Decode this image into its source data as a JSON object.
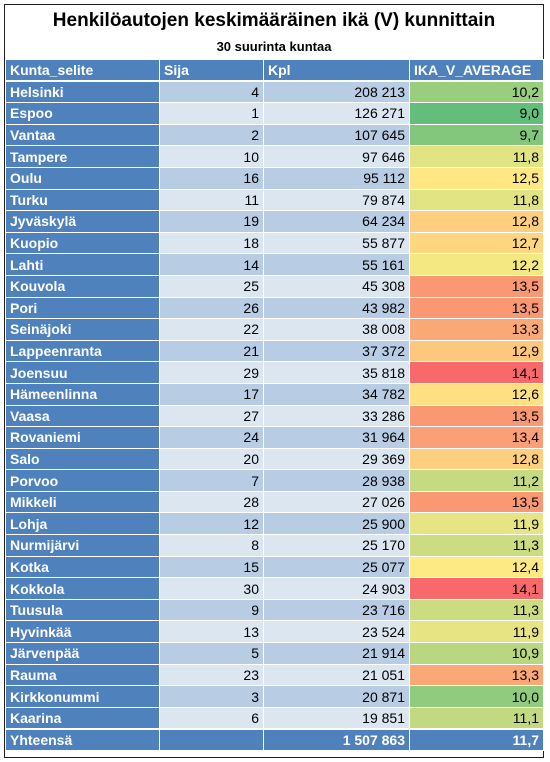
{
  "title": "Henkilöautojen keskimääräinen ikä (V) kunnittain",
  "subtitle": "30 suurinta kuntaa",
  "headers": [
    "Kunta_selite",
    "Sija",
    "Kpl",
    "IKA_V_AVERAGE"
  ],
  "total": {
    "label": "Yhteensä",
    "sija": "",
    "kpl": "1 507 863",
    "avg": "11,7"
  },
  "scale_colors": {
    "low": "#63be7b",
    "mid": "#ffeb84",
    "high": "#f8696b"
  },
  "chart_data": {
    "type": "table",
    "title": "Henkilöautojen keskimääräinen ikä (V) kunnittain",
    "subtitle": "30 suurinta kuntaa",
    "columns": [
      "Kunta_selite",
      "Sija",
      "Kpl",
      "IKA_V_AVERAGE"
    ],
    "rows": [
      {
        "kunta": "Helsinki",
        "sija": 4,
        "kpl": "208 213",
        "avg": "10,2"
      },
      {
        "kunta": "Espoo",
        "sija": 1,
        "kpl": "126 271",
        "avg": "9,0"
      },
      {
        "kunta": "Vantaa",
        "sija": 2,
        "kpl": "107 645",
        "avg": "9,7"
      },
      {
        "kunta": "Tampere",
        "sija": 10,
        "kpl": "97 646",
        "avg": "11,8"
      },
      {
        "kunta": "Oulu",
        "sija": 16,
        "kpl": "95 112",
        "avg": "12,5"
      },
      {
        "kunta": "Turku",
        "sija": 11,
        "kpl": "79 874",
        "avg": "11,8"
      },
      {
        "kunta": "Jyväskylä",
        "sija": 19,
        "kpl": "64 234",
        "avg": "12,8"
      },
      {
        "kunta": "Kuopio",
        "sija": 18,
        "kpl": "55 877",
        "avg": "12,7"
      },
      {
        "kunta": "Lahti",
        "sija": 14,
        "kpl": "55 161",
        "avg": "12,2"
      },
      {
        "kunta": "Kouvola",
        "sija": 25,
        "kpl": "45 308",
        "avg": "13,5"
      },
      {
        "kunta": "Pori",
        "sija": 26,
        "kpl": "43 982",
        "avg": "13,5"
      },
      {
        "kunta": "Seinäjoki",
        "sija": 22,
        "kpl": "38 008",
        "avg": "13,3"
      },
      {
        "kunta": "Lappeenranta",
        "sija": 21,
        "kpl": "37 372",
        "avg": "12,9"
      },
      {
        "kunta": "Joensuu",
        "sija": 29,
        "kpl": "35 818",
        "avg": "14,1"
      },
      {
        "kunta": "Hämeenlinna",
        "sija": 17,
        "kpl": "34 782",
        "avg": "12,6"
      },
      {
        "kunta": "Vaasa",
        "sija": 27,
        "kpl": "33 286",
        "avg": "13,5"
      },
      {
        "kunta": "Rovaniemi",
        "sija": 24,
        "kpl": "31 964",
        "avg": "13,4"
      },
      {
        "kunta": "Salo",
        "sija": 20,
        "kpl": "29 369",
        "avg": "12,8"
      },
      {
        "kunta": "Porvoo",
        "sija": 7,
        "kpl": "28 938",
        "avg": "11,2"
      },
      {
        "kunta": "Mikkeli",
        "sija": 28,
        "kpl": "27 026",
        "avg": "13,5"
      },
      {
        "kunta": "Lohja",
        "sija": 12,
        "kpl": "25 900",
        "avg": "11,9"
      },
      {
        "kunta": "Nurmijärvi",
        "sija": 8,
        "kpl": "25 170",
        "avg": "11,3"
      },
      {
        "kunta": "Kotka",
        "sija": 15,
        "kpl": "25 077",
        "avg": "12,4"
      },
      {
        "kunta": "Kokkola",
        "sija": 30,
        "kpl": "24 903",
        "avg": "14,1"
      },
      {
        "kunta": "Tuusula",
        "sija": 9,
        "kpl": "23 716",
        "avg": "11,3"
      },
      {
        "kunta": "Hyvinkää",
        "sija": 13,
        "kpl": "23 524",
        "avg": "11,9"
      },
      {
        "kunta": "Järvenpää",
        "sija": 5,
        "kpl": "21 914",
        "avg": "10,9"
      },
      {
        "kunta": "Rauma",
        "sija": 23,
        "kpl": "21 051",
        "avg": "13,3"
      },
      {
        "kunta": "Kirkkonummi",
        "sija": 3,
        "kpl": "20 871",
        "avg": "10,0"
      },
      {
        "kunta": "Kaarina",
        "sija": 6,
        "kpl": "19 851",
        "avg": "11,1"
      }
    ]
  }
}
